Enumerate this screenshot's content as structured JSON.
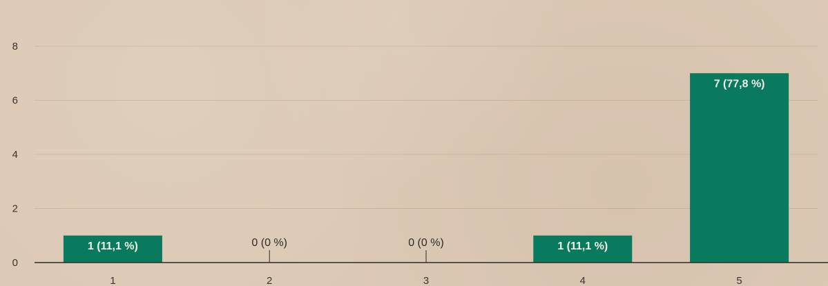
{
  "colors": {
    "bar": "#0a7a5f",
    "background": "#dcc9b5"
  },
  "chart_data": {
    "type": "bar",
    "categories": [
      "1",
      "2",
      "3",
      "4",
      "5"
    ],
    "values": [
      1,
      0,
      0,
      1,
      7
    ],
    "data_labels": [
      "1 (11,1 %)",
      "0 (0 %)",
      "0 (0 %)",
      "1 (11,1 %)",
      "7 (77,8 %)"
    ],
    "yticks": [
      "0",
      "2",
      "4",
      "6",
      "8"
    ],
    "ylim": [
      0,
      8
    ],
    "title": "",
    "xlabel": "",
    "ylabel": "",
    "grid": true,
    "legend": "none"
  }
}
